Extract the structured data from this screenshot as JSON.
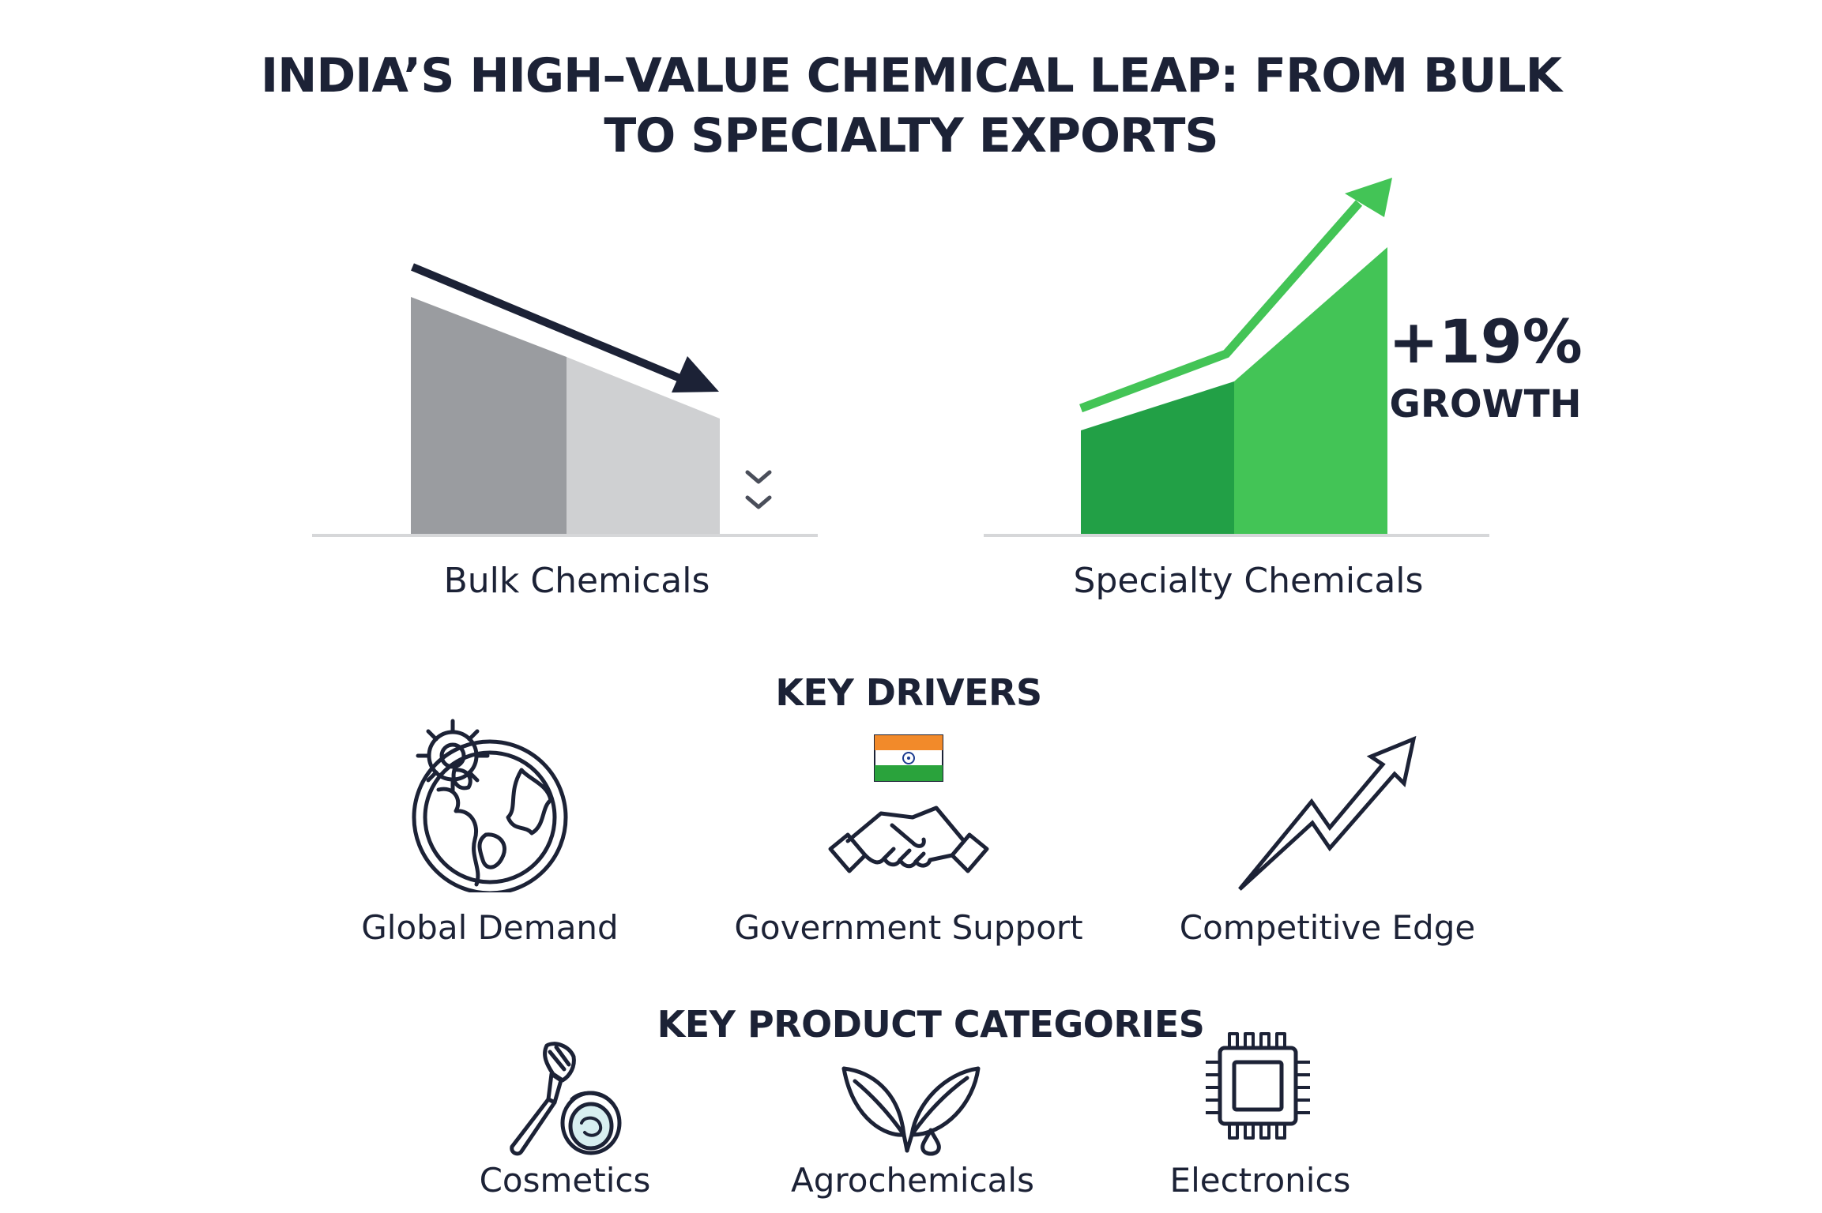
{
  "title": {
    "line1": "INDIA’S HIGH–VALUE CHEMICAL LEAP: FROM BULK",
    "line2": "TO SPECIALTY EXPORTS"
  },
  "bulk": {
    "label": "Bulk Chemicals",
    "trend": "declining"
  },
  "specialty": {
    "label": "Specialty Chemicals",
    "trend": "rising",
    "growth_value": "+19%",
    "growth_word": "GROWTH"
  },
  "drivers": {
    "heading": "KEY DRIVERS",
    "items": [
      {
        "label": "Global Demand",
        "icon": "globe-gear-icon"
      },
      {
        "label": "Government Support",
        "icon": "handshake-flag-icon"
      },
      {
        "label": "Competitive Edge",
        "icon": "trend-up-arrow-icon"
      }
    ]
  },
  "products": {
    "heading": "KEY PRODUCT CATEGORIES",
    "items": [
      {
        "label": "Cosmetics",
        "icon": "brush-compact-icon"
      },
      {
        "label": "Agrochemicals",
        "icon": "leaf-drop-icon"
      },
      {
        "label": "Electronics",
        "icon": "microchip-icon"
      }
    ]
  },
  "colors": {
    "text": "#1c2236",
    "bulk_dark": "#9a9ca0",
    "bulk_light": "#cfd0d2",
    "specialty_dark": "#22a046",
    "specialty_light": "#43c456",
    "accent_green": "#43c456"
  }
}
